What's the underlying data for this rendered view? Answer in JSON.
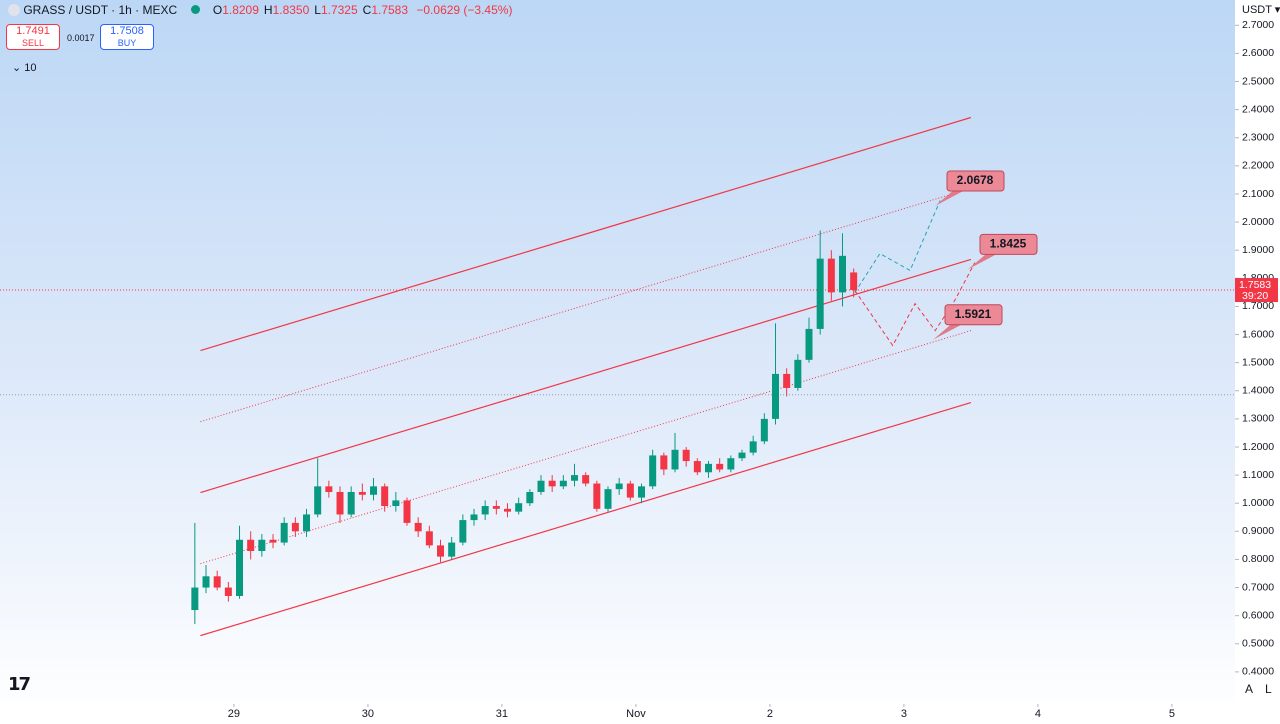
{
  "header": {
    "symbol": "GRASS / USDT · 1h · MEXC",
    "legend": [
      {
        "key": "O",
        "value": "1.8209"
      },
      {
        "key": "H",
        "value": "1.8350"
      },
      {
        "key": "L",
        "value": "1.7325"
      },
      {
        "key": "C",
        "value": "1.7583"
      }
    ],
    "change": "−0.0629 (−3.45%)",
    "sell_price": "1.7491",
    "sell_label": "SELL",
    "spread": "0.0017",
    "buy_price": "1.7508",
    "buy_label": "BUY",
    "indicators": "10",
    "currency": "USDT",
    "buttons": [
      "A",
      "L"
    ]
  },
  "chart_data": {
    "type": "candlestick",
    "up_color": "#089981",
    "down_color": "#f23645",
    "xlim": [
      -41.9,
      179.3
    ],
    "xticks": [
      {
        "value": 0,
        "label": "29"
      },
      {
        "value": 24,
        "label": "30"
      },
      {
        "value": 48,
        "label": "31"
      },
      {
        "value": 72,
        "label": "Nov"
      },
      {
        "value": 96,
        "label": "2"
      },
      {
        "value": 120,
        "label": "3"
      },
      {
        "value": 144,
        "label": "4"
      },
      {
        "value": 168,
        "label": "5"
      }
    ],
    "ylim": [
      0.3,
      2.79
    ],
    "yticks": [
      {
        "value": 0.4,
        "label": "0.4000"
      },
      {
        "value": 0.5,
        "label": "0.5000"
      },
      {
        "value": 0.6,
        "label": "0.6000"
      },
      {
        "value": 0.7,
        "label": "0.7000"
      },
      {
        "value": 0.8,
        "label": "0.8000"
      },
      {
        "value": 0.9,
        "label": "0.9000"
      },
      {
        "value": 1.0,
        "label": "1.0000"
      },
      {
        "value": 1.1,
        "label": "1.1000"
      },
      {
        "value": 1.2,
        "label": "1.2000"
      },
      {
        "value": 1.3,
        "label": "1.3000"
      },
      {
        "value": 1.4,
        "label": "1.4000"
      },
      {
        "value": 1.5,
        "label": "1.5000"
      },
      {
        "value": 1.6,
        "label": "1.6000"
      },
      {
        "value": 1.7,
        "label": "1.7000"
      },
      {
        "value": 1.8,
        "label": "1.8000"
      },
      {
        "value": 1.9,
        "label": "1.9000"
      },
      {
        "value": 2.0,
        "label": "2.0000"
      },
      {
        "value": 2.1,
        "label": "2.1000"
      },
      {
        "value": 2.2,
        "label": "2.2000"
      },
      {
        "value": 2.3,
        "label": "2.3000"
      },
      {
        "value": 2.4,
        "label": "2.4000"
      },
      {
        "value": 2.5,
        "label": "2.5000"
      },
      {
        "value": 2.6,
        "label": "2.6000"
      },
      {
        "value": 2.7,
        "label": "2.7000"
      }
    ],
    "x": [
      -7,
      -5,
      -3,
      -1,
      1,
      3,
      5,
      7,
      9,
      11,
      13,
      15,
      17,
      19,
      21,
      23,
      25,
      27,
      29,
      31,
      33,
      35,
      37,
      39,
      41,
      43,
      45,
      47,
      49,
      51,
      53,
      55,
      57,
      59,
      61,
      63,
      65,
      67,
      69,
      71,
      73,
      75,
      77,
      79,
      81,
      83,
      85,
      87,
      89,
      91,
      93,
      95,
      97,
      99,
      101,
      103,
      105,
      107,
      109,
      111
    ],
    "ohlc": [
      [
        0.62,
        0.93,
        0.57,
        0.7
      ],
      [
        0.7,
        0.78,
        0.68,
        0.74
      ],
      [
        0.74,
        0.76,
        0.69,
        0.7
      ],
      [
        0.7,
        0.72,
        0.65,
        0.67
      ],
      [
        0.67,
        0.92,
        0.66,
        0.87
      ],
      [
        0.87,
        0.9,
        0.8,
        0.83
      ],
      [
        0.83,
        0.89,
        0.81,
        0.87
      ],
      [
        0.87,
        0.89,
        0.84,
        0.86
      ],
      [
        0.86,
        0.95,
        0.85,
        0.93
      ],
      [
        0.93,
        0.95,
        0.88,
        0.9
      ],
      [
        0.9,
        0.98,
        0.88,
        0.96
      ],
      [
        0.96,
        1.16,
        0.95,
        1.06
      ],
      [
        1.06,
        1.08,
        1.02,
        1.04
      ],
      [
        1.04,
        1.06,
        0.93,
        0.96
      ],
      [
        0.96,
        1.06,
        0.95,
        1.04
      ],
      [
        1.04,
        1.07,
        1.01,
        1.03
      ],
      [
        1.03,
        1.09,
        1.01,
        1.06
      ],
      [
        1.06,
        1.07,
        0.97,
        0.99
      ],
      [
        0.99,
        1.04,
        0.97,
        1.01
      ],
      [
        1.01,
        1.02,
        0.92,
        0.93
      ],
      [
        0.93,
        0.95,
        0.88,
        0.9
      ],
      [
        0.9,
        0.92,
        0.84,
        0.85
      ],
      [
        0.85,
        0.87,
        0.79,
        0.81
      ],
      [
        0.81,
        0.88,
        0.8,
        0.86
      ],
      [
        0.86,
        0.96,
        0.85,
        0.94
      ],
      [
        0.94,
        0.98,
        0.92,
        0.96
      ],
      [
        0.96,
        1.01,
        0.94,
        0.99
      ],
      [
        0.99,
        1.01,
        0.96,
        0.98
      ],
      [
        0.98,
        1.0,
        0.95,
        0.97
      ],
      [
        0.97,
        1.02,
        0.96,
        1.0
      ],
      [
        1.0,
        1.05,
        0.99,
        1.04
      ],
      [
        1.04,
        1.1,
        1.03,
        1.08
      ],
      [
        1.08,
        1.1,
        1.04,
        1.06
      ],
      [
        1.06,
        1.1,
        1.05,
        1.08
      ],
      [
        1.08,
        1.14,
        1.06,
        1.1
      ],
      [
        1.1,
        1.11,
        1.06,
        1.07
      ],
      [
        1.07,
        1.08,
        0.97,
        0.98
      ],
      [
        0.98,
        1.06,
        0.97,
        1.05
      ],
      [
        1.05,
        1.09,
        1.03,
        1.07
      ],
      [
        1.07,
        1.08,
        1.01,
        1.02
      ],
      [
        1.02,
        1.07,
        1.0,
        1.06
      ],
      [
        1.06,
        1.19,
        1.05,
        1.17
      ],
      [
        1.17,
        1.18,
        1.1,
        1.12
      ],
      [
        1.12,
        1.25,
        1.11,
        1.19
      ],
      [
        1.19,
        1.2,
        1.13,
        1.15
      ],
      [
        1.15,
        1.16,
        1.1,
        1.11
      ],
      [
        1.11,
        1.15,
        1.09,
        1.14
      ],
      [
        1.14,
        1.16,
        1.11,
        1.12
      ],
      [
        1.12,
        1.17,
        1.11,
        1.16
      ],
      [
        1.16,
        1.19,
        1.15,
        1.18
      ],
      [
        1.18,
        1.24,
        1.17,
        1.22
      ],
      [
        1.22,
        1.32,
        1.21,
        1.3
      ],
      [
        1.3,
        1.64,
        1.28,
        1.46
      ],
      [
        1.46,
        1.48,
        1.38,
        1.41
      ],
      [
        1.41,
        1.53,
        1.4,
        1.51
      ],
      [
        1.51,
        1.66,
        1.5,
        1.62
      ],
      [
        1.62,
        1.97,
        1.6,
        1.87
      ],
      [
        1.87,
        1.9,
        1.72,
        1.75
      ],
      [
        1.75,
        1.96,
        1.7,
        1.88
      ],
      [
        1.8209,
        1.835,
        1.7325,
        1.7583
      ]
    ],
    "lines": [
      {
        "x": [
          -6,
          132
        ],
        "y": [
          1.543,
          2.372
        ],
        "color": "#f23645",
        "dash": false
      },
      {
        "x": [
          -6,
          132
        ],
        "y": [
          1.29,
          2.12
        ],
        "color": "#f23645",
        "dash": true
      },
      {
        "x": [
          -6,
          132
        ],
        "y": [
          1.038,
          1.867
        ],
        "color": "#f23645",
        "dash": false
      },
      {
        "x": [
          -6,
          132
        ],
        "y": [
          0.785,
          1.614
        ],
        "color": "#f23645",
        "dash": true
      },
      {
        "x": [
          -6,
          132
        ],
        "y": [
          0.529,
          1.358
        ],
        "color": "#f23645",
        "dash": false
      },
      {
        "x": [
          111.2,
          115.7,
          121.1,
          126.5
        ],
        "y": [
          1.749,
          1.888,
          1.828,
          2.077
        ],
        "color": "#22a6b3",
        "dash": true
      },
      {
        "x": [
          111.2,
          118.0,
          122.0,
          125.6,
          129.1,
          132.7
        ],
        "y": [
          1.757,
          1.561,
          1.71,
          1.614,
          1.721,
          1.856
        ],
        "color": "#f23645",
        "dash": true
      }
    ],
    "targets": [
      2.0678,
      1.8425,
      1.5921
    ],
    "hlines": [
      1.7583,
      1.386
    ],
    "price_tag": {
      "value": 1.7583,
      "countdown": "39:20"
    }
  }
}
